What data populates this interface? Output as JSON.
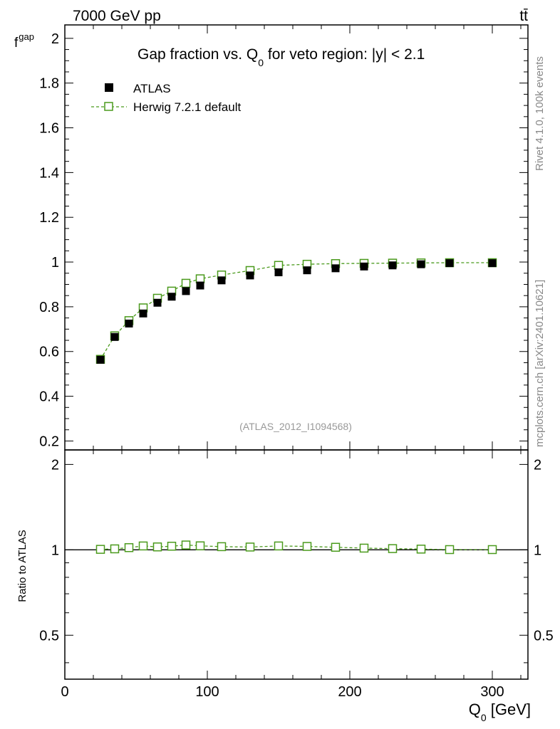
{
  "header": {
    "left_label": "7000 GeV pp",
    "right_label": "tt̄"
  },
  "side_labels": {
    "rivet": "Rivet 4.1.0,  100k events",
    "mcplots": "mcplots.cern.ch [arXiv:2401.10621]"
  },
  "chart_data": {
    "type": "scatter",
    "title": "Gap fraction vs. Q",
    "title_subscript": "0",
    "title_suffix": " for veto region: |y| < 2.1",
    "analysis_id": "(ATLAS_2012_I1094568)",
    "xlabel": "Q",
    "xlabel_subscript": "0",
    "xlabel_suffix": " [GeV]",
    "ylabel": "f",
    "ylabel_subscript": "gap",
    "ratio_ylabel": "Ratio to ATLAS",
    "xlim": [
      0,
      325
    ],
    "ylim": [
      0.16,
      2.06
    ],
    "ratio_ylim": [
      0.35,
      2.25
    ],
    "x_ticks": [
      0,
      100,
      200,
      300
    ],
    "y_ticks": [
      0.2,
      0.4,
      0.6,
      0.8,
      1,
      1.2,
      1.4,
      1.6,
      1.8,
      2
    ],
    "ratio_ticks": [
      0.5,
      1,
      2
    ],
    "x": [
      25,
      35,
      45,
      55,
      65,
      75,
      85,
      95,
      110,
      130,
      150,
      170,
      190,
      210,
      230,
      250,
      270,
      300
    ],
    "series": [
      {
        "name": "ATLAS",
        "color": "#000000",
        "marker": "filled-square",
        "values": [
          0.563,
          0.665,
          0.725,
          0.77,
          0.818,
          0.845,
          0.87,
          0.895,
          0.918,
          0.94,
          0.954,
          0.963,
          0.972,
          0.98,
          0.985,
          0.99,
          0.995,
          0.995
        ]
      },
      {
        "name": "Herwig 7.2.1 default",
        "color": "#4a9a1c",
        "marker": "open-square",
        "line": "dashed",
        "values": [
          0.565,
          0.67,
          0.738,
          0.795,
          0.838,
          0.87,
          0.905,
          0.925,
          0.942,
          0.962,
          0.985,
          0.99,
          0.993,
          0.994,
          0.995,
          0.996,
          0.997,
          0.997
        ]
      }
    ],
    "ratio": [
      1.004,
      1.008,
      1.018,
      1.032,
      1.024,
      1.03,
      1.04,
      1.033,
      1.026,
      1.023,
      1.032,
      1.028,
      1.021,
      1.014,
      1.01,
      1.006,
      1.002,
      1.002
    ]
  }
}
